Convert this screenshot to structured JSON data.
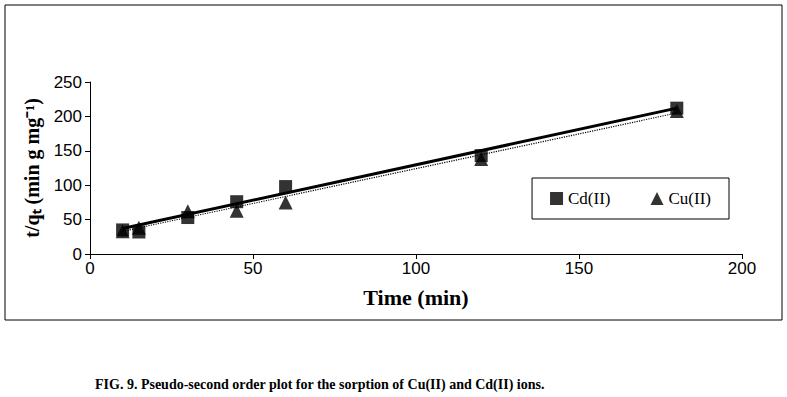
{
  "chart_data": {
    "type": "scatter",
    "title": "FIG. 9. Pseudo-second order plot for the sorption of Cu(II) and Cd(II) ions.",
    "x_label": "Time (min)",
    "y_label": "t/qₜ (min g mg⁻¹)",
    "x": [
      10,
      15,
      30,
      45,
      60,
      120,
      180
    ],
    "series": [
      {
        "name": "Cd(II)",
        "color": "#000000",
        "marker": "square",
        "line_style": "solid",
        "values": [
          35,
          32,
          53,
          76,
          98,
          143,
          212
        ],
        "fit": {
          "x": [
            10,
            180
          ],
          "values": [
            37,
            212
          ]
        }
      },
      {
        "name": "Cu(II)",
        "color": "#000000",
        "marker": "triangle",
        "line_style": "dotted",
        "values": [
          33,
          38,
          62,
          63,
          75,
          138,
          208
        ],
        "fit": {
          "x": [
            10,
            180
          ],
          "values": [
            33,
            205
          ]
        }
      }
    ],
    "xlim": [
      0,
      200
    ],
    "xticks": [
      0,
      50,
      100,
      150,
      200
    ],
    "ylim": [
      0,
      250
    ],
    "yticks": [
      0,
      50,
      100,
      150,
      200,
      250
    ],
    "grid": false,
    "legend": "right"
  }
}
